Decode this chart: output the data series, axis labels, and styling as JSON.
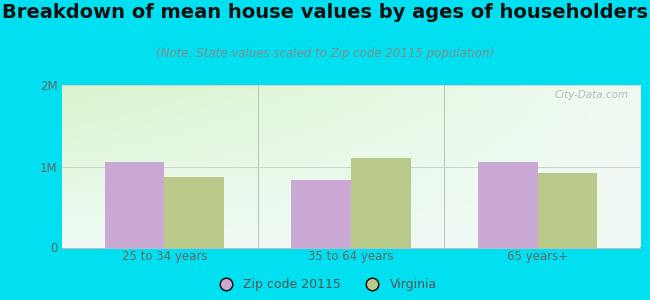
{
  "title": "Breakdown of mean house values by ages of householders",
  "subtitle": "(Note: State values scaled to Zip code 20115 population)",
  "categories": [
    "25 to 34 years",
    "35 to 64 years",
    "65 years+"
  ],
  "zip_values": [
    1050000,
    830000,
    1050000
  ],
  "state_values": [
    870000,
    1100000,
    920000
  ],
  "ylim": [
    0,
    2000000
  ],
  "yticks": [
    0,
    1000000,
    2000000
  ],
  "ytick_labels": [
    "0",
    "1M",
    "2M"
  ],
  "zip_color": "#c9a8d4",
  "state_color": "#b8c98a",
  "bg_color_topleft": "#d8f0c8",
  "bg_color_topright": "#eaf5f0",
  "bg_color_bottom": "#f0faf5",
  "outer_bg": "#00e0f0",
  "legend_zip_label": "Zip code 20115",
  "legend_state_label": "Virginia",
  "bar_width": 0.32,
  "title_fontsize": 14,
  "subtitle_fontsize": 8.5,
  "tick_fontsize": 8.5,
  "watermark": "City-Data.com"
}
